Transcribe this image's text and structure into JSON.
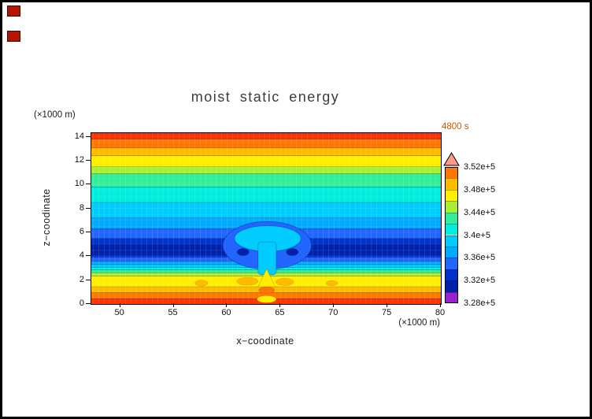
{
  "window": {
    "background": "#ffffff",
    "frame_color": "#000000",
    "corner_marker_color": "#b21500"
  },
  "figure": {
    "title": "moist static energy",
    "timestamp": "4800 s",
    "timestamp_color": "#cc5500"
  },
  "axes": {
    "x": {
      "label": "x−coodinate",
      "unit": "(×1000 m)",
      "min": 47.3,
      "max": 80,
      "ticks": [
        {
          "label": "50",
          "v": 50
        },
        {
          "label": "55",
          "v": 55
        },
        {
          "label": "60",
          "v": 60
        },
        {
          "label": "65",
          "v": 65
        },
        {
          "label": "70",
          "v": 70
        },
        {
          "label": "75",
          "v": 75
        },
        {
          "label": "80",
          "v": 80
        }
      ]
    },
    "y": {
      "label": "z−coodinate",
      "unit": "(×1000 m)",
      "min": 0,
      "max": 14.3,
      "ticks": [
        {
          "label": "0",
          "v": 0
        },
        {
          "label": "2",
          "v": 2
        },
        {
          "label": "4",
          "v": 4
        },
        {
          "label": "6",
          "v": 6
        },
        {
          "label": "8",
          "v": 8
        },
        {
          "label": "10",
          "v": 10
        },
        {
          "label": "12",
          "v": 12
        },
        {
          "label": "14",
          "v": 14
        }
      ]
    }
  },
  "colorbar": {
    "labels_top_to_bottom": [
      "3.52e+5",
      "3.48e+5",
      "3.44e+5",
      "3.4e+5",
      "3.36e+5",
      "3.32e+5",
      "3.28e+5"
    ],
    "segment_colors_bottom_to_top": [
      "#9922cc",
      "#0022aa",
      "#0033cc",
      "#2266ff",
      "#00aaff",
      "#00ccff",
      "#00eedd",
      "#33ee99",
      "#aaee33",
      "#ffee00",
      "#ffbb00",
      "#ff7700"
    ],
    "overflow_triangle_color": "#ff9988"
  },
  "chart_data": {
    "type": "filled-contour",
    "title": "moist static energy",
    "time_label": "4800 s",
    "xlabel": "x−coodinate (×1000 m)",
    "ylabel": "z−coodinate (×1000 m)",
    "x_range": [
      47.3,
      80
    ],
    "z_range": [
      0,
      14.3
    ],
    "contour_levels": [
      328000,
      330000,
      332000,
      334000,
      336000,
      338000,
      340000,
      342000,
      344000,
      346000,
      348000,
      350000,
      352000
    ],
    "bands": [
      {
        "z0": 0.0,
        "z1": 0.45,
        "v0": 350000,
        "v1": 352000,
        "color": "#ff3300"
      },
      {
        "z0": 0.45,
        "z1": 0.95,
        "v0": 348000,
        "v1": 350000,
        "color": "#ff7700"
      },
      {
        "z0": 0.95,
        "z1": 1.45,
        "v0": 346000,
        "v1": 348000,
        "color": "#ffbb00"
      },
      {
        "z0": 1.45,
        "z1": 2.35,
        "v0": 344000,
        "v1": 346000,
        "color": "#ffee00"
      },
      {
        "z0": 2.35,
        "z1": 2.62,
        "v0": 342000,
        "v1": 344000,
        "color": "#aaee33"
      },
      {
        "z0": 2.62,
        "z1": 2.85,
        "v0": 340000,
        "v1": 342000,
        "color": "#33ee99"
      },
      {
        "z0": 2.85,
        "z1": 3.06,
        "v0": 338000,
        "v1": 340000,
        "color": "#00eedd"
      },
      {
        "z0": 3.06,
        "z1": 3.3,
        "v0": 336000,
        "v1": 338000,
        "color": "#00ccff"
      },
      {
        "z0": 3.3,
        "z1": 3.56,
        "v0": 334000,
        "v1": 336000,
        "color": "#00aaff"
      },
      {
        "z0": 3.56,
        "z1": 3.92,
        "v0": 332000,
        "v1": 334000,
        "color": "#2266ff"
      },
      {
        "z0": 3.92,
        "z1": 5.5,
        "v0": 330000,
        "v1": 332000,
        "color": "#0033cc"
      },
      {
        "z0": 5.5,
        "z1": 6.3,
        "v0": 332000,
        "v1": 334000,
        "color": "#2266ff"
      },
      {
        "z0": 6.3,
        "z1": 7.2,
        "v0": 334000,
        "v1": 336000,
        "color": "#00aaff"
      },
      {
        "z0": 7.2,
        "z1": 8.5,
        "v0": 336000,
        "v1": 338000,
        "color": "#00ccff"
      },
      {
        "z0": 8.5,
        "z1": 9.8,
        "v0": 338000,
        "v1": 340000,
        "color": "#00eedd"
      },
      {
        "z0": 9.8,
        "z1": 10.9,
        "v0": 340000,
        "v1": 342000,
        "color": "#33ee99"
      },
      {
        "z0": 10.9,
        "z1": 11.5,
        "v0": 342000,
        "v1": 344000,
        "color": "#aaee33"
      },
      {
        "z0": 11.5,
        "z1": 12.4,
        "v0": 344000,
        "v1": 346000,
        "color": "#ffee00"
      },
      {
        "z0": 12.4,
        "z1": 13.05,
        "v0": 346000,
        "v1": 348000,
        "color": "#ffbb00"
      },
      {
        "z0": 13.05,
        "z1": 13.8,
        "v0": 348000,
        "v1": 350000,
        "color": "#ff7700"
      },
      {
        "z0": 13.8,
        "z1": 14.3,
        "v0": 350000,
        "v1": 352000,
        "color": "#ff3300"
      }
    ],
    "core_band": {
      "z0": 4.05,
      "z1": 5.0,
      "v0": 328000,
      "v1": 330000,
      "color": "#0022aa"
    },
    "features": {
      "description": "buoyant thermal plume rising at x ≈ 63.7, mushroom cap near z ≈ 5–6.5, warm anomalies near the surface",
      "updraft_plume": {
        "x_center": 63.7,
        "halo": {
          "x0": 59.6,
          "x1": 67.9,
          "z0": 2.9,
          "z1": 6.9,
          "color": "#2266ff"
        },
        "cap": {
          "x0": 60.7,
          "x1": 66.9,
          "z_base": 4.4,
          "z_top": 6.55,
          "color": "#00ccff"
        },
        "stem": {
          "x0": 62.9,
          "x1": 64.6,
          "z0": 2.45,
          "z1": 5.2,
          "color": "#00ccff"
        },
        "vortex_spots": [
          {
            "x": 61.5,
            "z": 4.35,
            "rx": 0.55,
            "rz": 0.3,
            "color": "#0022aa"
          },
          {
            "x": 66.1,
            "z": 4.35,
            "rx": 0.55,
            "rz": 0.3,
            "color": "#0022aa"
          }
        ],
        "surface_spike": {
          "x0": 62.9,
          "x1": 64.5,
          "z0": 1.45,
          "z1": 2.95,
          "color": "#ffee00"
        },
        "warm_blobs": [
          {
            "x": 61.9,
            "z": 1.9,
            "rx": 1.0,
            "rz": 0.33,
            "color": "#ffbb00"
          },
          {
            "x": 65.4,
            "z": 1.85,
            "rx": 0.85,
            "rz": 0.3,
            "color": "#ffbb00"
          },
          {
            "x": 63.7,
            "z": 1.15,
            "rx": 0.75,
            "rz": 0.28,
            "color": "#ff7700"
          },
          {
            "x": 57.6,
            "z": 1.75,
            "rx": 0.6,
            "rz": 0.25,
            "color": "#ffbb00"
          },
          {
            "x": 69.8,
            "z": 1.75,
            "rx": 0.55,
            "rz": 0.22,
            "color": "#ffbb00"
          },
          {
            "x": 63.7,
            "z": 0.4,
            "rx": 0.9,
            "rz": 0.3,
            "color": "#ffee00"
          }
        ]
      }
    },
    "vertical_profile_estimate": [
      {
        "z": 0,
        "value": 351000
      },
      {
        "z": 1,
        "value": 347000
      },
      {
        "z": 2,
        "value": 344500
      },
      {
        "z": 3,
        "value": 337000
      },
      {
        "z": 4,
        "value": 331000
      },
      {
        "z": 4.5,
        "value": 329500
      },
      {
        "z": 5,
        "value": 330500
      },
      {
        "z": 6,
        "value": 333000
      },
      {
        "z": 7,
        "value": 335500
      },
      {
        "z": 8,
        "value": 337500
      },
      {
        "z": 9,
        "value": 339000
      },
      {
        "z": 10,
        "value": 341000
      },
      {
        "z": 11,
        "value": 343000
      },
      {
        "z": 12,
        "value": 345500
      },
      {
        "z": 13,
        "value": 348000
      },
      {
        "z": 14.3,
        "value": 351000
      }
    ]
  }
}
